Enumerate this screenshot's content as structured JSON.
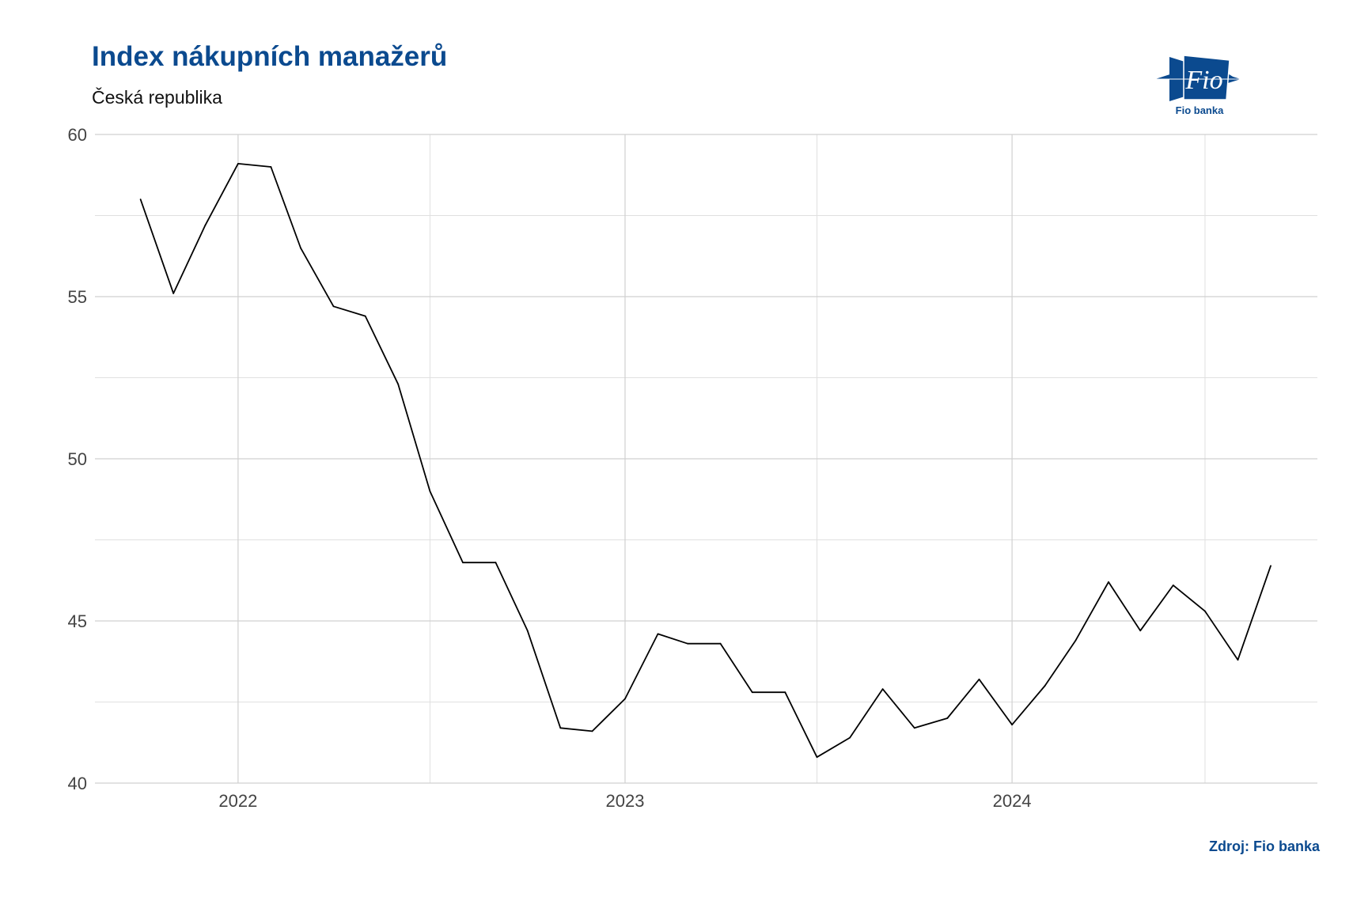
{
  "title": "Index nákupních manažerů",
  "subtitle": "Česká republika",
  "source": "Zdroj: Fio banka",
  "logo": {
    "text": "Fio",
    "caption": "Fio banka",
    "color": "#0b4a8f"
  },
  "chart_data": {
    "type": "line",
    "title": "Index nákupních manažerů",
    "subtitle": "Česká republika",
    "xlabel": "",
    "ylabel": "",
    "ylim": [
      40,
      60
    ],
    "xlim": [
      "2021-08-19",
      "2024-10-15"
    ],
    "yticks": [
      40,
      45,
      50,
      55,
      60
    ],
    "xticks": [
      {
        "date": "2022-01-01",
        "label": "2022"
      },
      {
        "date": "2023-01-01",
        "label": "2023"
      },
      {
        "date": "2024-01-01",
        "label": "2024"
      }
    ],
    "grid": true,
    "line_color": "#000000",
    "series": [
      {
        "x": [
          "2021-10-01",
          "2021-11-01",
          "2021-12-01",
          "2022-01-01",
          "2022-02-01",
          "2022-03-01",
          "2022-04-01",
          "2022-05-01",
          "2022-06-01",
          "2022-07-01",
          "2022-08-01",
          "2022-09-01",
          "2022-10-01",
          "2022-11-01",
          "2022-12-01",
          "2023-01-01",
          "2023-02-01",
          "2023-03-01",
          "2023-04-01",
          "2023-05-01",
          "2023-06-01",
          "2023-07-01",
          "2023-08-01",
          "2023-09-01",
          "2023-10-01",
          "2023-11-01",
          "2023-12-01",
          "2024-01-01",
          "2024-02-01",
          "2024-03-01",
          "2024-04-01",
          "2024-05-01",
          "2024-06-01",
          "2024-07-01",
          "2024-08-01",
          "2024-09-01"
        ],
        "values": [
          58.0,
          55.1,
          57.2,
          59.1,
          59.0,
          56.5,
          54.7,
          54.4,
          52.3,
          49.0,
          46.8,
          46.8,
          44.7,
          41.7,
          41.6,
          42.6,
          44.6,
          44.3,
          44.3,
          42.8,
          42.8,
          40.8,
          41.4,
          42.9,
          41.7,
          42.0,
          43.2,
          41.8,
          43.0,
          44.4,
          46.2,
          44.7,
          46.1,
          45.3,
          43.8,
          46.7
        ]
      }
    ]
  }
}
